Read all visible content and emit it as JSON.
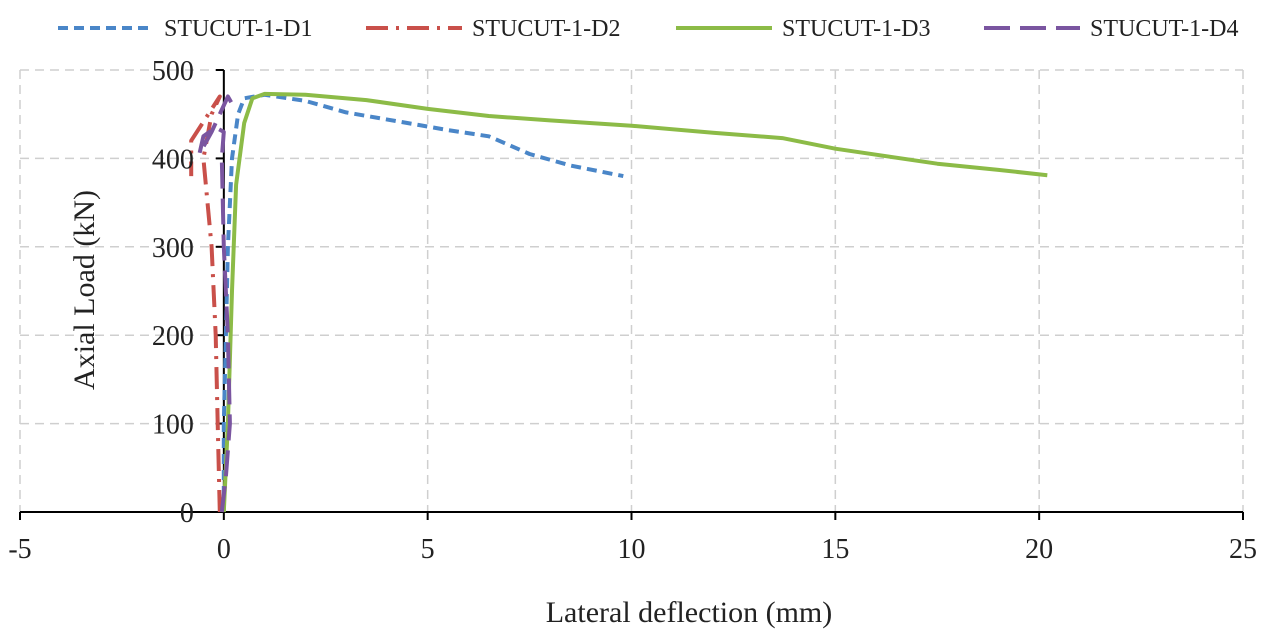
{
  "chart_data": {
    "type": "line",
    "title": "",
    "xlabel": "Lateral deflection (mm)",
    "ylabel": "Axial Load (kN)",
    "xlim": [
      -5,
      25
    ],
    "ylim": [
      0,
      500
    ],
    "xticks": [
      -5,
      0,
      5,
      10,
      15,
      20,
      25
    ],
    "yticks": [
      0,
      100,
      200,
      300,
      400,
      500
    ],
    "x_tick_labels": [
      "-5",
      "0",
      "5",
      "10",
      "15",
      "20",
      "25"
    ],
    "y_tick_labels": [
      "0",
      "100",
      "200",
      "300",
      "400",
      "500"
    ],
    "grid": true,
    "legend_position": "top",
    "series": [
      {
        "name": "STUCUT-1-D1",
        "color": "#4a86c8",
        "dash": "dashed",
        "points": [
          [
            0.0,
            0
          ],
          [
            0.0,
            50
          ],
          [
            0.0,
            100
          ],
          [
            0.05,
            200
          ],
          [
            0.1,
            300
          ],
          [
            0.2,
            400
          ],
          [
            0.35,
            450
          ],
          [
            0.5,
            468
          ],
          [
            1.0,
            472
          ],
          [
            2.0,
            465
          ],
          [
            3.0,
            452
          ],
          [
            4.5,
            440
          ],
          [
            5.5,
            432
          ],
          [
            6.5,
            425
          ],
          [
            7.5,
            405
          ],
          [
            8.5,
            392
          ],
          [
            9.8,
            380
          ]
        ]
      },
      {
        "name": "STUCUT-1-D2",
        "color": "#c9504a",
        "dash": "dashdot",
        "points": [
          [
            -0.1,
            0
          ],
          [
            -0.15,
            100
          ],
          [
            -0.2,
            200
          ],
          [
            -0.3,
            300
          ],
          [
            -0.5,
            400
          ],
          [
            -0.3,
            450
          ],
          [
            -0.1,
            470
          ],
          [
            -0.8,
            420
          ],
          [
            -0.8,
            380
          ]
        ]
      },
      {
        "name": "STUCUT-1-D3",
        "color": "#8cbb47",
        "dash": "solid",
        "points": [
          [
            0.0,
            0
          ],
          [
            0.1,
            100
          ],
          [
            0.2,
            250
          ],
          [
            0.3,
            370
          ],
          [
            0.5,
            440
          ],
          [
            0.7,
            468
          ],
          [
            1.0,
            473
          ],
          [
            2.0,
            472
          ],
          [
            3.5,
            466
          ],
          [
            5.0,
            456
          ],
          [
            6.5,
            448
          ],
          [
            8.0,
            443
          ],
          [
            10.0,
            437
          ],
          [
            12.0,
            429
          ],
          [
            13.7,
            423
          ],
          [
            15.0,
            411
          ],
          [
            17.5,
            394
          ],
          [
            19.0,
            387
          ],
          [
            20.2,
            381
          ]
        ]
      },
      {
        "name": "STUCUT-1-D4",
        "color": "#7a55a0",
        "dash": "longdash",
        "points": [
          [
            -0.05,
            0
          ],
          [
            0.05,
            40
          ],
          [
            0.15,
            100
          ],
          [
            0.1,
            200
          ],
          [
            0.0,
            300
          ],
          [
            -0.05,
            400
          ],
          [
            0.0,
            430
          ],
          [
            -0.2,
            435
          ],
          [
            -0.5,
            425
          ],
          [
            -0.6,
            405
          ],
          [
            -0.3,
            430
          ],
          [
            0.1,
            470
          ],
          [
            0.25,
            458
          ]
        ]
      }
    ]
  }
}
